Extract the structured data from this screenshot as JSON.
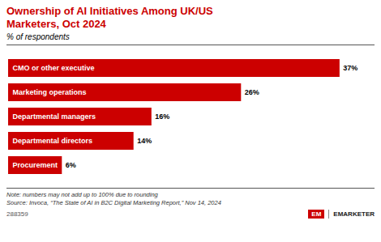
{
  "chart_data": {
    "type": "bar",
    "orientation": "horizontal",
    "title": "Ownership of AI Initiatives Among UK/US\nMarketers, Oct 2024",
    "subtitle": "% of respondents",
    "categories": [
      "CMO or other executive",
      "Marketing operations",
      "Departmental managers",
      "Departmental directors",
      "Procurement"
    ],
    "values": [
      37,
      26,
      16,
      14,
      6
    ],
    "value_labels": [
      "37%",
      "26%",
      "16%",
      "14%",
      "6%"
    ],
    "data_labels": true,
    "color": "#CC0000",
    "xlim": [
      0,
      40
    ],
    "tick_labels": false,
    "grid": false,
    "note": "Note: numbers may not add up to 100% due to rounding\nSource: Invoca, “The State of AI in B2C Digital Marketing Report,” Nov 14, 2024",
    "annotations": [
      "288359",
      "EM",
      "EMARKETER"
    ]
  }
}
